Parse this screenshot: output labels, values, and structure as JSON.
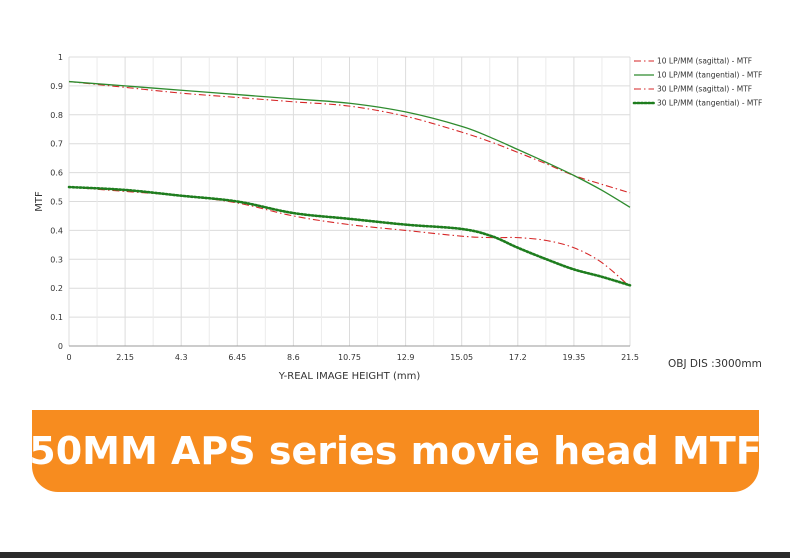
{
  "banner": {
    "text": "50MM APS series movie head MTF",
    "color": "#f78c1f"
  },
  "obj_dis_label": "OBJ DIS :3000mm",
  "chart_data": {
    "type": "line",
    "title": "",
    "xlabel": "Y-REAL IMAGE HEIGHT (mm)",
    "ylabel": "MTF",
    "xlim": [
      0,
      21.5
    ],
    "ylim": [
      0,
      1
    ],
    "x_ticks": [
      "0",
      "2.15",
      "4.3",
      "6.45",
      "8.6",
      "10.75",
      "12.9",
      "15.05",
      "17.2",
      "19.35",
      "21.5"
    ],
    "y_ticks": [
      "0",
      "0.1",
      "0.2",
      "0.3",
      "0.4",
      "0.5",
      "0.6",
      "0.7",
      "0.8",
      "0.9",
      "1"
    ],
    "grid": true,
    "legend_position": "top-right",
    "x": [
      0,
      2.15,
      4.3,
      6.45,
      8.6,
      10.75,
      12.9,
      15.05,
      16.2,
      17.2,
      18.3,
      19.35,
      20.4,
      21.5
    ],
    "series": [
      {
        "name": "10 LP/MM (sagittal) - MTF",
        "color": "#d62728",
        "style": "dash-dot",
        "values": [
          0.915,
          0.895,
          0.875,
          0.86,
          0.845,
          0.83,
          0.795,
          0.74,
          0.705,
          0.67,
          0.63,
          0.59,
          0.56,
          0.53
        ]
      },
      {
        "name": "10 LP/MM (tangential) - MTF",
        "color": "#2e8b2e",
        "style": "solid",
        "values": [
          0.915,
          0.9,
          0.885,
          0.87,
          0.855,
          0.84,
          0.81,
          0.76,
          0.72,
          0.68,
          0.635,
          0.59,
          0.54,
          0.48
        ]
      },
      {
        "name": "30 LP/MM (sagittal) - MTF",
        "color": "#d62728",
        "style": "dash-dot",
        "values": [
          0.55,
          0.535,
          0.52,
          0.495,
          0.45,
          0.42,
          0.4,
          0.38,
          0.375,
          0.375,
          0.365,
          0.34,
          0.29,
          0.205
        ]
      },
      {
        "name": "30 LP/MM (tangential) - MTF",
        "color": "#1e7d1e",
        "style": "dotted",
        "values": [
          0.55,
          0.54,
          0.52,
          0.5,
          0.46,
          0.44,
          0.42,
          0.405,
          0.38,
          0.34,
          0.3,
          0.265,
          0.24,
          0.21
        ]
      }
    ]
  }
}
